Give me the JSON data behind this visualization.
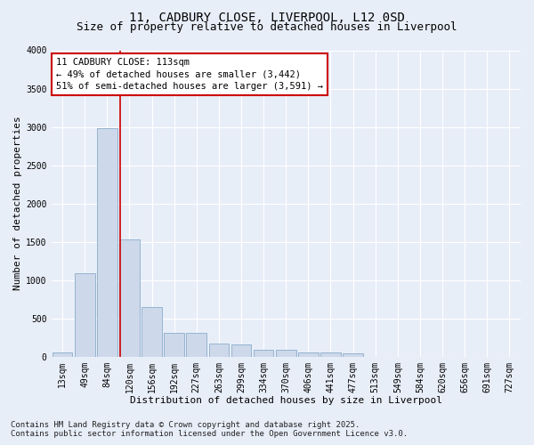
{
  "title_line1": "11, CADBURY CLOSE, LIVERPOOL, L12 0SD",
  "title_line2": "Size of property relative to detached houses in Liverpool",
  "xlabel": "Distribution of detached houses by size in Liverpool",
  "ylabel": "Number of detached properties",
  "categories": [
    "13sqm",
    "49sqm",
    "84sqm",
    "120sqm",
    "156sqm",
    "192sqm",
    "227sqm",
    "263sqm",
    "299sqm",
    "334sqm",
    "370sqm",
    "406sqm",
    "441sqm",
    "477sqm",
    "513sqm",
    "549sqm",
    "584sqm",
    "620sqm",
    "656sqm",
    "691sqm",
    "727sqm"
  ],
  "values": [
    60,
    1090,
    2980,
    1530,
    650,
    310,
    310,
    175,
    165,
    90,
    90,
    55,
    50,
    40,
    0,
    0,
    0,
    0,
    0,
    0,
    0
  ],
  "bar_color": "#cdd8ea",
  "bar_edge_color": "#8aadcc",
  "vline_color": "#cc0000",
  "annotation_text": "11 CADBURY CLOSE: 113sqm\n← 49% of detached houses are smaller (3,442)\n51% of semi-detached houses are larger (3,591) →",
  "annotation_box_color": "#cc0000",
  "ylim": [
    0,
    4000
  ],
  "yticks": [
    0,
    500,
    1000,
    1500,
    2000,
    2500,
    3000,
    3500,
    4000
  ],
  "footer_line1": "Contains HM Land Registry data © Crown copyright and database right 2025.",
  "footer_line2": "Contains public sector information licensed under the Open Government Licence v3.0.",
  "background_color": "#e8eef8",
  "plot_background_color": "#e8eef8",
  "grid_color": "#ffffff",
  "title_fontsize": 10,
  "subtitle_fontsize": 9,
  "axis_label_fontsize": 8,
  "tick_fontsize": 7,
  "annotation_fontsize": 7.5,
  "footer_fontsize": 6.5
}
